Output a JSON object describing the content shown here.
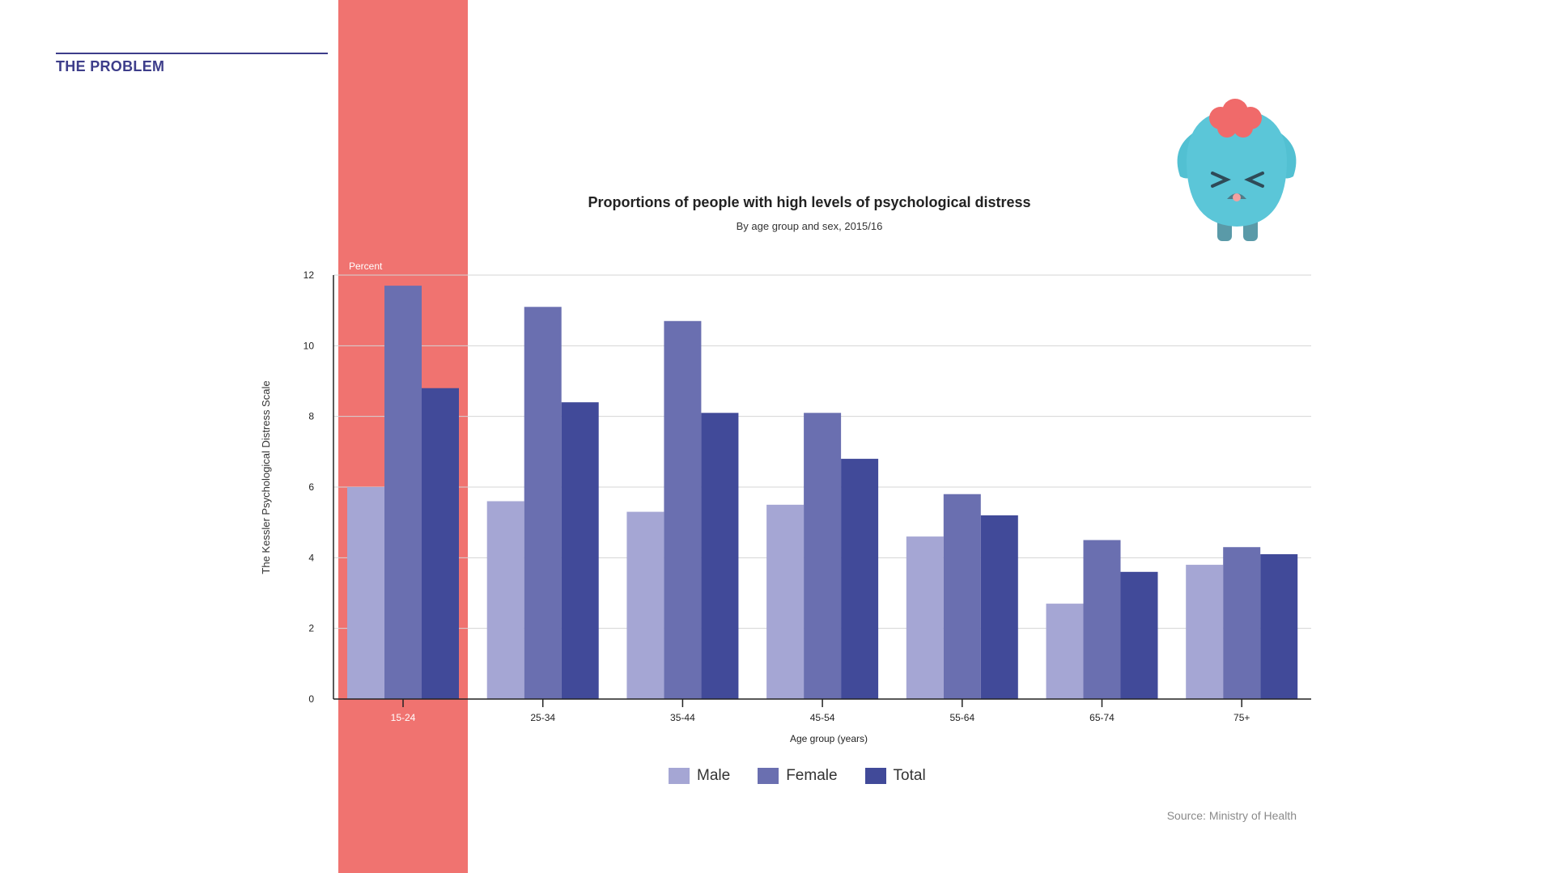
{
  "section": {
    "title": "THE PROBLEM"
  },
  "source": "Source: Ministry of Health",
  "colors": {
    "male": "#a5a6d4",
    "female": "#6a6fb0",
    "total": "#414a99",
    "highlight": "#f07370"
  },
  "mascot": {
    "icon": "stressed-brain-mascot-icon"
  },
  "chart_data": {
    "type": "bar",
    "title": "Proportions of people with high levels of psychological distress",
    "subtitle": "By age group and sex, 2015/16",
    "xlabel": "Age group (years)",
    "ylabel": "The Kessler Psychological Distress Scale",
    "unit_label": "Percent",
    "ylim": [
      0,
      12
    ],
    "yticks": [
      0,
      2,
      4,
      6,
      8,
      10,
      12
    ],
    "grid": true,
    "legend_position": "bottom-center",
    "highlighted_category": "15-24",
    "categories": [
      "15-24",
      "25-34",
      "35-44",
      "45-54",
      "55-64",
      "65-74",
      "75+"
    ],
    "series": [
      {
        "name": "Male",
        "values": [
          6.0,
          5.6,
          5.3,
          5.5,
          4.6,
          2.7,
          3.8
        ]
      },
      {
        "name": "Female",
        "values": [
          11.7,
          11.1,
          10.7,
          8.1,
          5.8,
          4.5,
          4.3
        ]
      },
      {
        "name": "Total",
        "values": [
          8.8,
          8.4,
          8.1,
          6.8,
          5.2,
          3.6,
          4.1
        ]
      }
    ],
    "source": "Source: Ministry of Health"
  }
}
